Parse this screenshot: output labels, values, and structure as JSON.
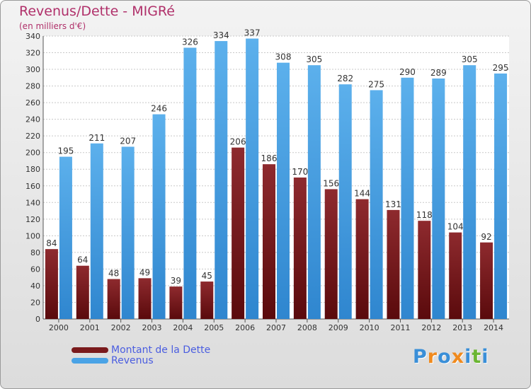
{
  "title": "Revenus/Dette - MIGRé",
  "subtitle": "(en milliers d'€)",
  "colors": {
    "debt": "#7a1a1c",
    "revenue": "#4aa3e6",
    "title": "#b0306a",
    "legend_text": "#4a5de0"
  },
  "logo": {
    "letters": [
      "P",
      "r",
      "o",
      "x",
      "i",
      "t",
      "i"
    ],
    "colors": [
      "#3a8fd8",
      "#f08a1e",
      "#3a8fd8",
      "#f08a1e",
      "#3a8fd8",
      "#6bb632",
      "#3a8fd8"
    ]
  },
  "chart_data": {
    "type": "bar",
    "title": "Revenus/Dette - MIGRé",
    "subtitle": "(en milliers d'€)",
    "categories": [
      "2000",
      "2001",
      "2002",
      "2003",
      "2004",
      "2005",
      "2006",
      "2007",
      "2008",
      "2009",
      "2010",
      "2011",
      "2012",
      "2013",
      "2014"
    ],
    "series": [
      {
        "name": "Montant de la Dette",
        "color": "#7a1a1c",
        "values": [
          84,
          64,
          48,
          49,
          39,
          45,
          206,
          186,
          170,
          156,
          144,
          131,
          118,
          104,
          92
        ]
      },
      {
        "name": "Revenus",
        "color": "#4aa3e6",
        "values": [
          195,
          211,
          207,
          246,
          326,
          334,
          337,
          308,
          305,
          282,
          275,
          290,
          289,
          305,
          295
        ]
      }
    ],
    "ylim": [
      0,
      340
    ],
    "ytick_step": 20,
    "grid": true,
    "legend_position": "bottom-left"
  }
}
